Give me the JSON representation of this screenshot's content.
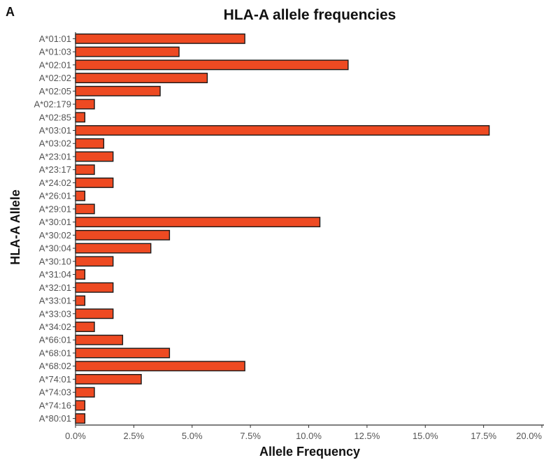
{
  "panel_label": "A",
  "chart_data": {
    "type": "bar",
    "orientation": "horizontal",
    "title": "HLA-A allele frequencies",
    "xlabel": "Allele Frequency",
    "ylabel": "HLA-A Allele",
    "xlim": [
      0,
      20
    ],
    "x_ticks": [
      0,
      2.5,
      5,
      7.5,
      10,
      12.5,
      15,
      17.5,
      20
    ],
    "x_tick_labels": [
      "0.0%",
      "2.5%",
      "5.0%",
      "7.5%",
      "10.0%",
      "12.5%",
      "15.0%",
      "17.5%",
      "20.0%"
    ],
    "grid": false,
    "bar_color": "#ee4a22",
    "bar_outline": "#1a1a1a",
    "categories": [
      "A*01:01",
      "A*01:03",
      "A*02:01",
      "A*02:02",
      "A*02:05",
      "A*02:179",
      "A*02:85",
      "A*03:01",
      "A*03:02",
      "A*23:01",
      "A*23:17",
      "A*24:02",
      "A*26:01",
      "A*29:01",
      "A*30:01",
      "A*30:02",
      "A*30:04",
      "A*30:10",
      "A*31:04",
      "A*32:01",
      "A*33:01",
      "A*33:03",
      "A*34:02",
      "A*66:01",
      "A*68:01",
      "A*68:02",
      "A*74:01",
      "A*74:03",
      "A*74:16",
      "A*80:01"
    ],
    "values": [
      7.26,
      4.44,
      11.69,
      5.65,
      3.63,
      0.81,
      0.4,
      17.74,
      1.21,
      1.61,
      0.81,
      1.61,
      0.4,
      0.81,
      10.48,
      4.03,
      3.23,
      1.61,
      0.4,
      1.61,
      0.4,
      1.61,
      0.81,
      2.02,
      4.03,
      7.26,
      2.82,
      0.81,
      0.4,
      0.4
    ]
  }
}
